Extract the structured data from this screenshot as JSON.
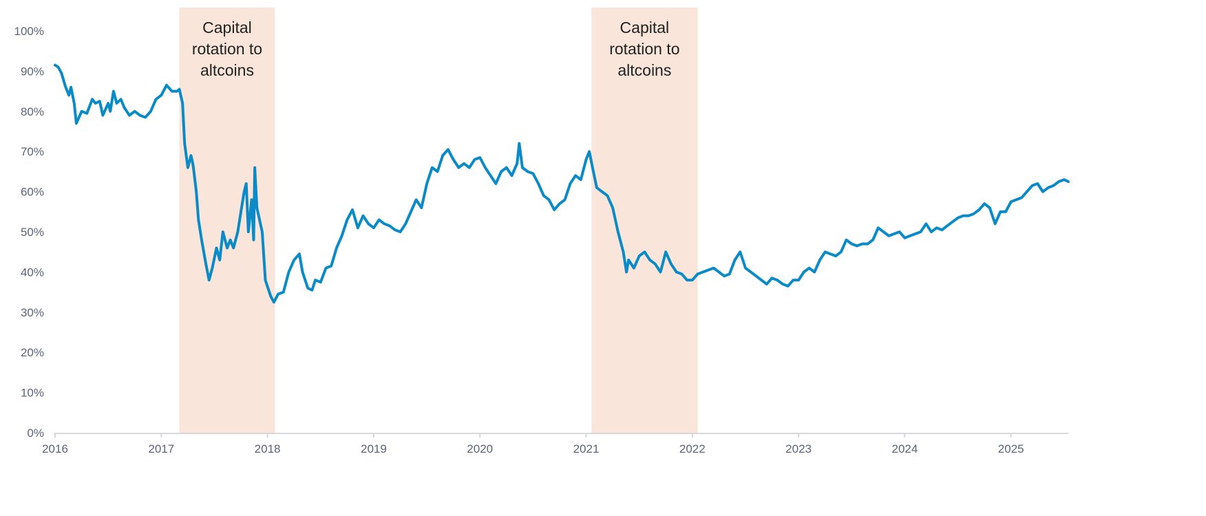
{
  "chart_data": {
    "type": "line",
    "title": "",
    "xlabel": "",
    "ylabel": "",
    "xlim": [
      2016,
      2025.54
    ],
    "ylim": [
      0,
      100
    ],
    "grid": false,
    "legend": "none",
    "x_ticks": [
      "2016",
      "2017",
      "2018",
      "2019",
      "2020",
      "2021",
      "2022",
      "2023",
      "2024",
      "2025"
    ],
    "y_ticks": [
      "0%",
      "10%",
      "20%",
      "30%",
      "40%",
      "50%",
      "60%",
      "70%",
      "80%",
      "90%",
      "100%"
    ],
    "colors": {
      "line": "#0a8bc8",
      "shade": "#f9e5d9",
      "axis": "#d6d8de",
      "tick_text": "#5b6478"
    },
    "shaded_regions": [
      {
        "start": 2017.17,
        "end": 2018.07,
        "label_lines": [
          "Capital",
          "rotation to",
          "altcoins"
        ]
      },
      {
        "start": 2021.05,
        "end": 2022.05,
        "label_lines": [
          "Capital",
          "rotation to",
          "altcoins"
        ]
      }
    ],
    "series": [
      {
        "points": [
          [
            2016.0,
            91.5
          ],
          [
            2016.03,
            91
          ],
          [
            2016.06,
            89.5
          ],
          [
            2016.1,
            86
          ],
          [
            2016.13,
            84
          ],
          [
            2016.15,
            86
          ],
          [
            2016.18,
            82
          ],
          [
            2016.2,
            77
          ],
          [
            2016.25,
            80
          ],
          [
            2016.3,
            79.5
          ],
          [
            2016.35,
            83
          ],
          [
            2016.38,
            82
          ],
          [
            2016.42,
            82.5
          ],
          [
            2016.45,
            79
          ],
          [
            2016.5,
            82
          ],
          [
            2016.52,
            80
          ],
          [
            2016.55,
            85
          ],
          [
            2016.58,
            82
          ],
          [
            2016.62,
            83
          ],
          [
            2016.65,
            81
          ],
          [
            2016.7,
            79
          ],
          [
            2016.75,
            80
          ],
          [
            2016.8,
            79
          ],
          [
            2016.85,
            78.5
          ],
          [
            2016.9,
            80
          ],
          [
            2016.95,
            83
          ],
          [
            2017.0,
            84
          ],
          [
            2017.05,
            86.5
          ],
          [
            2017.1,
            85
          ],
          [
            2017.15,
            85
          ],
          [
            2017.17,
            85.5
          ],
          [
            2017.2,
            82
          ],
          [
            2017.22,
            72
          ],
          [
            2017.25,
            66
          ],
          [
            2017.28,
            69
          ],
          [
            2017.3,
            66.5
          ],
          [
            2017.33,
            60
          ],
          [
            2017.35,
            53
          ],
          [
            2017.38,
            48
          ],
          [
            2017.42,
            42
          ],
          [
            2017.45,
            38
          ],
          [
            2017.48,
            41
          ],
          [
            2017.52,
            46
          ],
          [
            2017.55,
            43
          ],
          [
            2017.58,
            50
          ],
          [
            2017.62,
            46
          ],
          [
            2017.65,
            48
          ],
          [
            2017.68,
            46
          ],
          [
            2017.72,
            50
          ],
          [
            2017.75,
            55
          ],
          [
            2017.78,
            60
          ],
          [
            2017.8,
            62
          ],
          [
            2017.82,
            50
          ],
          [
            2017.85,
            58
          ],
          [
            2017.87,
            48
          ],
          [
            2017.88,
            66
          ],
          [
            2017.9,
            56
          ],
          [
            2017.95,
            50
          ],
          [
            2017.98,
            38
          ],
          [
            2018.03,
            34
          ],
          [
            2018.06,
            32.5
          ],
          [
            2018.1,
            34.5
          ],
          [
            2018.15,
            35
          ],
          [
            2018.2,
            40
          ],
          [
            2018.25,
            43
          ],
          [
            2018.3,
            44.5
          ],
          [
            2018.33,
            40
          ],
          [
            2018.38,
            36
          ],
          [
            2018.42,
            35.5
          ],
          [
            2018.45,
            38
          ],
          [
            2018.5,
            37.5
          ],
          [
            2018.55,
            41
          ],
          [
            2018.6,
            41.5
          ],
          [
            2018.65,
            46
          ],
          [
            2018.7,
            49
          ],
          [
            2018.75,
            53
          ],
          [
            2018.8,
            55.5
          ],
          [
            2018.85,
            51
          ],
          [
            2018.9,
            54
          ],
          [
            2018.95,
            52
          ],
          [
            2019.0,
            51
          ],
          [
            2019.05,
            53
          ],
          [
            2019.1,
            52
          ],
          [
            2019.15,
            51.5
          ],
          [
            2019.2,
            50.5
          ],
          [
            2019.25,
            50
          ],
          [
            2019.3,
            52
          ],
          [
            2019.35,
            55
          ],
          [
            2019.4,
            58
          ],
          [
            2019.45,
            56
          ],
          [
            2019.5,
            62
          ],
          [
            2019.55,
            66
          ],
          [
            2019.6,
            65
          ],
          [
            2019.65,
            69
          ],
          [
            2019.7,
            70.5
          ],
          [
            2019.75,
            68
          ],
          [
            2019.8,
            66
          ],
          [
            2019.85,
            67
          ],
          [
            2019.9,
            66
          ],
          [
            2019.95,
            68
          ],
          [
            2020.0,
            68.5
          ],
          [
            2020.05,
            66
          ],
          [
            2020.1,
            64
          ],
          [
            2020.15,
            62
          ],
          [
            2020.2,
            65
          ],
          [
            2020.25,
            66
          ],
          [
            2020.3,
            64
          ],
          [
            2020.35,
            67
          ],
          [
            2020.37,
            72
          ],
          [
            2020.4,
            66
          ],
          [
            2020.45,
            65
          ],
          [
            2020.5,
            64.5
          ],
          [
            2020.55,
            62
          ],
          [
            2020.6,
            59
          ],
          [
            2020.65,
            58
          ],
          [
            2020.7,
            55.5
          ],
          [
            2020.75,
            57
          ],
          [
            2020.8,
            58
          ],
          [
            2020.85,
            62
          ],
          [
            2020.9,
            64
          ],
          [
            2020.95,
            63
          ],
          [
            2021.0,
            68
          ],
          [
            2021.03,
            70
          ],
          [
            2021.06,
            66
          ],
          [
            2021.1,
            61
          ],
          [
            2021.15,
            60
          ],
          [
            2021.2,
            59
          ],
          [
            2021.25,
            56
          ],
          [
            2021.3,
            50
          ],
          [
            2021.35,
            45
          ],
          [
            2021.38,
            40
          ],
          [
            2021.4,
            43
          ],
          [
            2021.45,
            41
          ],
          [
            2021.5,
            44
          ],
          [
            2021.55,
            45
          ],
          [
            2021.6,
            43
          ],
          [
            2021.65,
            42
          ],
          [
            2021.7,
            40
          ],
          [
            2021.75,
            45
          ],
          [
            2021.8,
            42
          ],
          [
            2021.85,
            40
          ],
          [
            2021.9,
            39.5
          ],
          [
            2021.95,
            38
          ],
          [
            2022.0,
            38
          ],
          [
            2022.05,
            39.5
          ],
          [
            2022.1,
            40
          ],
          [
            2022.2,
            41
          ],
          [
            2022.25,
            40
          ],
          [
            2022.3,
            39
          ],
          [
            2022.35,
            39.5
          ],
          [
            2022.4,
            43
          ],
          [
            2022.45,
            45
          ],
          [
            2022.5,
            41
          ],
          [
            2022.55,
            40
          ],
          [
            2022.6,
            39
          ],
          [
            2022.65,
            38
          ],
          [
            2022.7,
            37
          ],
          [
            2022.75,
            38.5
          ],
          [
            2022.8,
            38
          ],
          [
            2022.85,
            37
          ],
          [
            2022.9,
            36.5
          ],
          [
            2022.95,
            38
          ],
          [
            2023.0,
            38
          ],
          [
            2023.05,
            40
          ],
          [
            2023.1,
            41
          ],
          [
            2023.15,
            40
          ],
          [
            2023.2,
            43
          ],
          [
            2023.25,
            45
          ],
          [
            2023.3,
            44.5
          ],
          [
            2023.35,
            44
          ],
          [
            2023.4,
            45
          ],
          [
            2023.45,
            48
          ],
          [
            2023.5,
            47
          ],
          [
            2023.55,
            46.5
          ],
          [
            2023.6,
            47
          ],
          [
            2023.65,
            47
          ],
          [
            2023.7,
            48
          ],
          [
            2023.75,
            51
          ],
          [
            2023.8,
            50
          ],
          [
            2023.85,
            49
          ],
          [
            2023.9,
            49.5
          ],
          [
            2023.95,
            50
          ],
          [
            2024.0,
            48.5
          ],
          [
            2024.05,
            49
          ],
          [
            2024.1,
            49.5
          ],
          [
            2024.15,
            50
          ],
          [
            2024.2,
            52
          ],
          [
            2024.25,
            50
          ],
          [
            2024.3,
            51
          ],
          [
            2024.35,
            50.5
          ],
          [
            2024.4,
            51.5
          ],
          [
            2024.45,
            52.5
          ],
          [
            2024.5,
            53.5
          ],
          [
            2024.55,
            54
          ],
          [
            2024.6,
            54
          ],
          [
            2024.65,
            54.5
          ],
          [
            2024.7,
            55.5
          ],
          [
            2024.75,
            57
          ],
          [
            2024.8,
            56
          ],
          [
            2024.85,
            52
          ],
          [
            2024.9,
            55
          ],
          [
            2024.95,
            55
          ],
          [
            2025.0,
            57.5
          ],
          [
            2025.05,
            58
          ],
          [
            2025.1,
            58.5
          ],
          [
            2025.15,
            60
          ],
          [
            2025.2,
            61.5
          ],
          [
            2025.25,
            62
          ],
          [
            2025.3,
            60
          ],
          [
            2025.35,
            61
          ],
          [
            2025.4,
            61.5
          ],
          [
            2025.45,
            62.5
          ],
          [
            2025.5,
            63
          ],
          [
            2025.54,
            62.5
          ]
        ]
      }
    ]
  }
}
